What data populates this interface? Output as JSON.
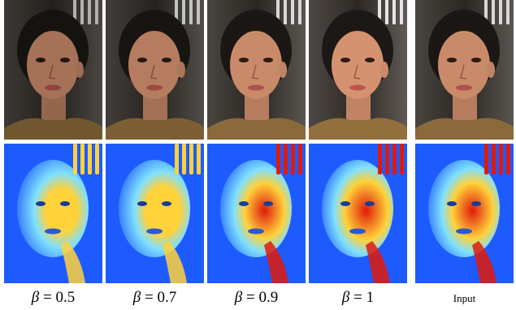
{
  "figure": {
    "columns": [
      {
        "id": "beta-05",
        "caption_symbol": "β",
        "caption_value": "0.5",
        "brightness": 0.82,
        "heat": 0.35
      },
      {
        "id": "beta-07",
        "caption_symbol": "β",
        "caption_value": "0.7",
        "brightness": 0.9,
        "heat": 0.5
      },
      {
        "id": "beta-09",
        "caption_symbol": "β",
        "caption_value": "0.9",
        "brightness": 1.0,
        "heat": 0.75
      },
      {
        "id": "beta-1",
        "caption_symbol": "β",
        "caption_value": "1",
        "brightness": 1.06,
        "heat": 0.92
      },
      {
        "id": "input",
        "caption_text": "Input",
        "brightness": 1.0,
        "heat": 0.8
      }
    ],
    "rows": [
      "photo",
      "heatmap"
    ],
    "colors": {
      "background": "#ffffff",
      "photo_dark": "#2a2622",
      "skin": "#c98a6a",
      "heat_cold": "#1e5bff",
      "heat_mid": "#7fe0ff",
      "heat_warm": "#ffd23a",
      "heat_hot": "#e01a0a"
    }
  }
}
